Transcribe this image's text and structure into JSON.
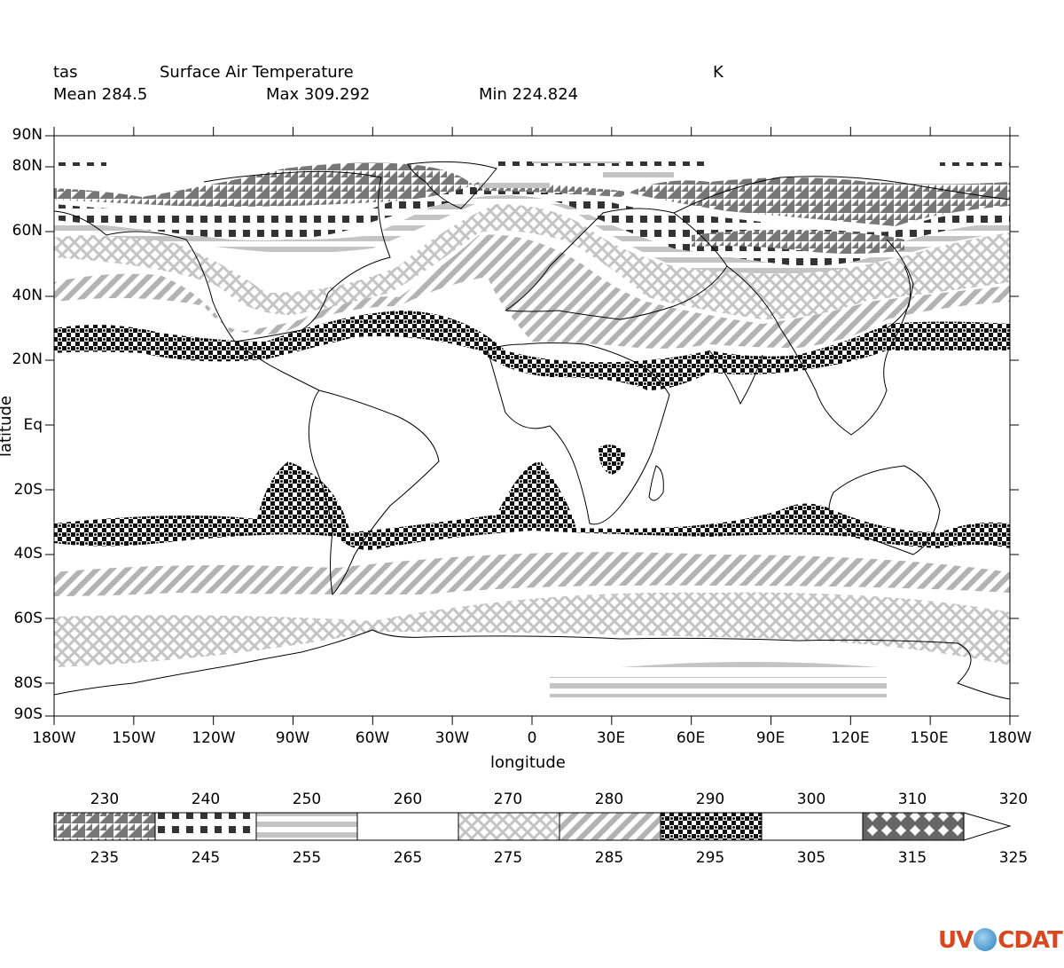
{
  "header": {
    "variable": "tas",
    "long_name": "Surface Air Temperature",
    "units": "K",
    "mean_label": "Mean 284.5",
    "max_label": "Max 309.292",
    "min_label": "Min 224.824"
  },
  "axes": {
    "y_title": "latitude",
    "x_title": "longitude",
    "lat_ticks": [
      "90N",
      "80N",
      "60N",
      "40N",
      "20N",
      "Eq",
      "20S",
      "40S",
      "60S",
      "80S",
      "90S"
    ],
    "lon_ticks": [
      "180W",
      "150W",
      "120W",
      "90W",
      "60W",
      "30W",
      "0",
      "30E",
      "60E",
      "90E",
      "120E",
      "150E",
      "180W"
    ]
  },
  "colorbar": {
    "top_labels": [
      "230",
      "240",
      "250",
      "260",
      "270",
      "280",
      "290",
      "300",
      "310",
      "320"
    ],
    "bottom_labels": [
      "235",
      "245",
      "255",
      "265",
      "275",
      "285",
      "295",
      "305",
      "315",
      "325"
    ],
    "patterns": [
      "triangles",
      "squares",
      "hstripes",
      "blank",
      "diamonds-light",
      "diagonal",
      "checker",
      "blank",
      "diamonds-dark"
    ],
    "extend": "max"
  },
  "logo": {
    "text_left": "UV",
    "text_right": "CDAT"
  },
  "chart_data": {
    "type": "heatmap",
    "title": "Surface Air Temperature",
    "variable": "tas",
    "units": "K",
    "xlabel": "longitude",
    "ylabel": "latitude",
    "xlim": [
      -180,
      180
    ],
    "ylim": [
      -90,
      90
    ],
    "mean": 284.5,
    "max": 309.292,
    "min": 224.824,
    "levels": [
      230,
      235,
      240,
      245,
      250,
      255,
      260,
      265,
      270,
      275,
      280,
      285,
      290,
      295,
      300,
      305,
      310,
      315,
      320,
      325
    ],
    "bands": [
      {
        "level": "230-235",
        "pattern": "triangles",
        "regions": [
          "Arctic 65-80N",
          "Greenland",
          "Siberia"
        ]
      },
      {
        "level": "240-245",
        "pattern": "squares",
        "regions": [
          "Arctic ring ~70N",
          "Siberia ~50-60N"
        ]
      },
      {
        "level": "250-255",
        "pattern": "hstripes",
        "regions": [
          "Antarctica interior ~80S",
          "Arctic ~60-70N"
        ]
      },
      {
        "level": "270-275",
        "pattern": "diamonds-light",
        "regions": [
          "55-65S ring",
          "45-60N"
        ]
      },
      {
        "level": "280-285",
        "pattern": "diagonal",
        "regions": [
          "45-50S ring",
          "30-45N"
        ]
      },
      {
        "level": "290-295",
        "pattern": "checker",
        "regions": [
          "25-35S ring",
          "20-30N ring"
        ]
      }
    ]
  }
}
